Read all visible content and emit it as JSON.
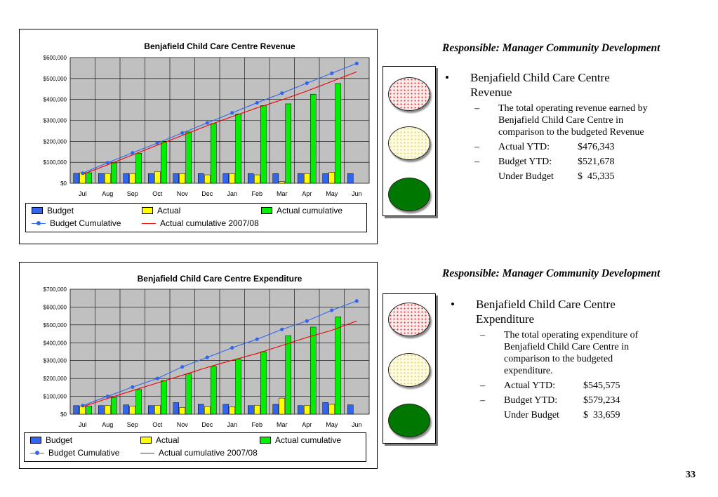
{
  "slide": {
    "page_number": "33"
  },
  "chart_data": [
    {
      "type": "bar",
      "title": "Benjafield Child Care Centre Revenue",
      "categories": [
        "Jul",
        "Aug",
        "Sep",
        "Oct",
        "Nov",
        "Dec",
        "Jan",
        "Feb",
        "Mar",
        "Apr",
        "May",
        "Jun"
      ],
      "ylim": [
        0,
        600000
      ],
      "yticks": [
        "$0",
        "$100,000",
        "$200,000",
        "$300,000",
        "$400,000",
        "$500,000",
        "$600,000"
      ],
      "grid": true,
      "legend_position": "bottom",
      "series": [
        {
          "name": "Budget",
          "kind": "bar",
          "color": "#3366ee",
          "values": [
            47000,
            46000,
            46000,
            46000,
            46000,
            46000,
            46000,
            46000,
            46000,
            46000,
            46000,
            46000
          ]
        },
        {
          "name": "Actual",
          "kind": "bar",
          "color": "#ffff00",
          "values": [
            50000,
            46000,
            46000,
            56000,
            46000,
            40000,
            46000,
            40000,
            8000,
            46000,
            52000,
            null
          ]
        },
        {
          "name": "Actual cumulative",
          "kind": "bar",
          "color": "#00ee00",
          "values": [
            50000,
            97000,
            143000,
            199000,
            245000,
            285000,
            331000,
            371000,
            379000,
            425000,
            476343,
            null
          ]
        },
        {
          "name": "Budget Cumulative",
          "kind": "line-marker",
          "color": "#3366ee",
          "values": [
            48000,
            98000,
            145000,
            192000,
            240000,
            288000,
            336000,
            384000,
            430000,
            478000,
            525000,
            572000
          ]
        },
        {
          "name": "Actual cumulative 2007/08",
          "kind": "line",
          "color": "#ee0000",
          "values": [
            42000,
            88000,
            135000,
            182000,
            228000,
            275000,
            318000,
            360000,
            398000,
            440000,
            486000,
            532000
          ]
        }
      ],
      "legend_rows": [
        [
          "Budget",
          "Actual",
          "Actual cumulative"
        ],
        [
          "Budget Cumulative",
          "Actual cumulative 2007/08"
        ]
      ]
    },
    {
      "type": "bar",
      "title": "Benjafield Child Care Centre Expenditure",
      "categories": [
        "Jul",
        "Aug",
        "Sep",
        "Oct",
        "Nov",
        "Dec",
        "Jan",
        "Feb",
        "Mar",
        "Apr",
        "May",
        "Jun"
      ],
      "ylim": [
        0,
        700000
      ],
      "yticks": [
        "$0",
        "$100,000",
        "$200,000",
        "$300,000",
        "$400,000",
        "$500,000",
        "$600,000",
        "$700,000"
      ],
      "grid": true,
      "legend_position": "bottom",
      "series": [
        {
          "name": "Budget",
          "kind": "bar",
          "color": "#3366ee",
          "values": [
            48000,
            48000,
            52000,
            48000,
            65000,
            55000,
            55000,
            48000,
            55000,
            48000,
            65000,
            52000
          ]
        },
        {
          "name": "Actual",
          "kind": "bar",
          "color": "#ffff00",
          "values": [
            45000,
            48000,
            45000,
            50000,
            38000,
            42000,
            40000,
            50000,
            90000,
            48000,
            55000,
            null
          ]
        },
        {
          "name": "Actual cumulative",
          "kind": "bar",
          "color": "#00ee00",
          "values": [
            45000,
            93000,
            138000,
            188000,
            226000,
            268000,
            308000,
            350000,
            440000,
            488000,
            545575,
            null
          ]
        },
        {
          "name": "Budget Cumulative",
          "kind": "line-marker",
          "color": "#3366ee",
          "values": [
            48000,
            100000,
            152000,
            200000,
            265000,
            318000,
            372000,
            420000,
            475000,
            522000,
            582000,
            634000
          ]
        },
        {
          "name": "Actual cumulative 2007/08",
          "kind": "line",
          "color": "#ee0000",
          "values": [
            42000,
            88000,
            132000,
            175000,
            218000,
            262000,
            302000,
            340000,
            385000,
            430000,
            470000,
            522000
          ]
        }
      ],
      "legend_rows": [
        [
          "Budget",
          "Actual",
          "Actual cumulative"
        ],
        [
          "Budget Cumulative",
          "Actual cumulative 2007/08"
        ]
      ]
    }
  ],
  "panels": [
    {
      "responsible": "Responsible: Manager Community Development",
      "heading": "Benjafield Child Care Centre Revenue",
      "description": "The total operating revenue earned by Benjafield Child Care Centre in comparison to the budgeted Revenue",
      "actual_label": "Actual YTD:",
      "actual_value": "$476,343",
      "budget_label": "Budget YTD:",
      "budget_value": "$521,678",
      "variance_label": "Under Budget",
      "variance_value": "$  45,335"
    },
    {
      "responsible": "Responsible: Manager Community Development",
      "heading": "Benjafield Child Care Centre Expenditure",
      "description": "The total operating expenditure of Benjafield Child Care Centre in comparison to the budgeted expenditure.",
      "actual_label": "Actual YTD:",
      "actual_value": "$545,575",
      "budget_label": "Budget YTD:",
      "budget_value": "$579,234",
      "variance_label": "Under Budget",
      "variance_value": "$  33,659"
    }
  ],
  "symbols": {
    "bullet": "•",
    "dash": "–"
  },
  "traffic_light": {
    "colors": [
      "#ee3333",
      "#eeee88",
      "#007700"
    ],
    "active": "green"
  }
}
